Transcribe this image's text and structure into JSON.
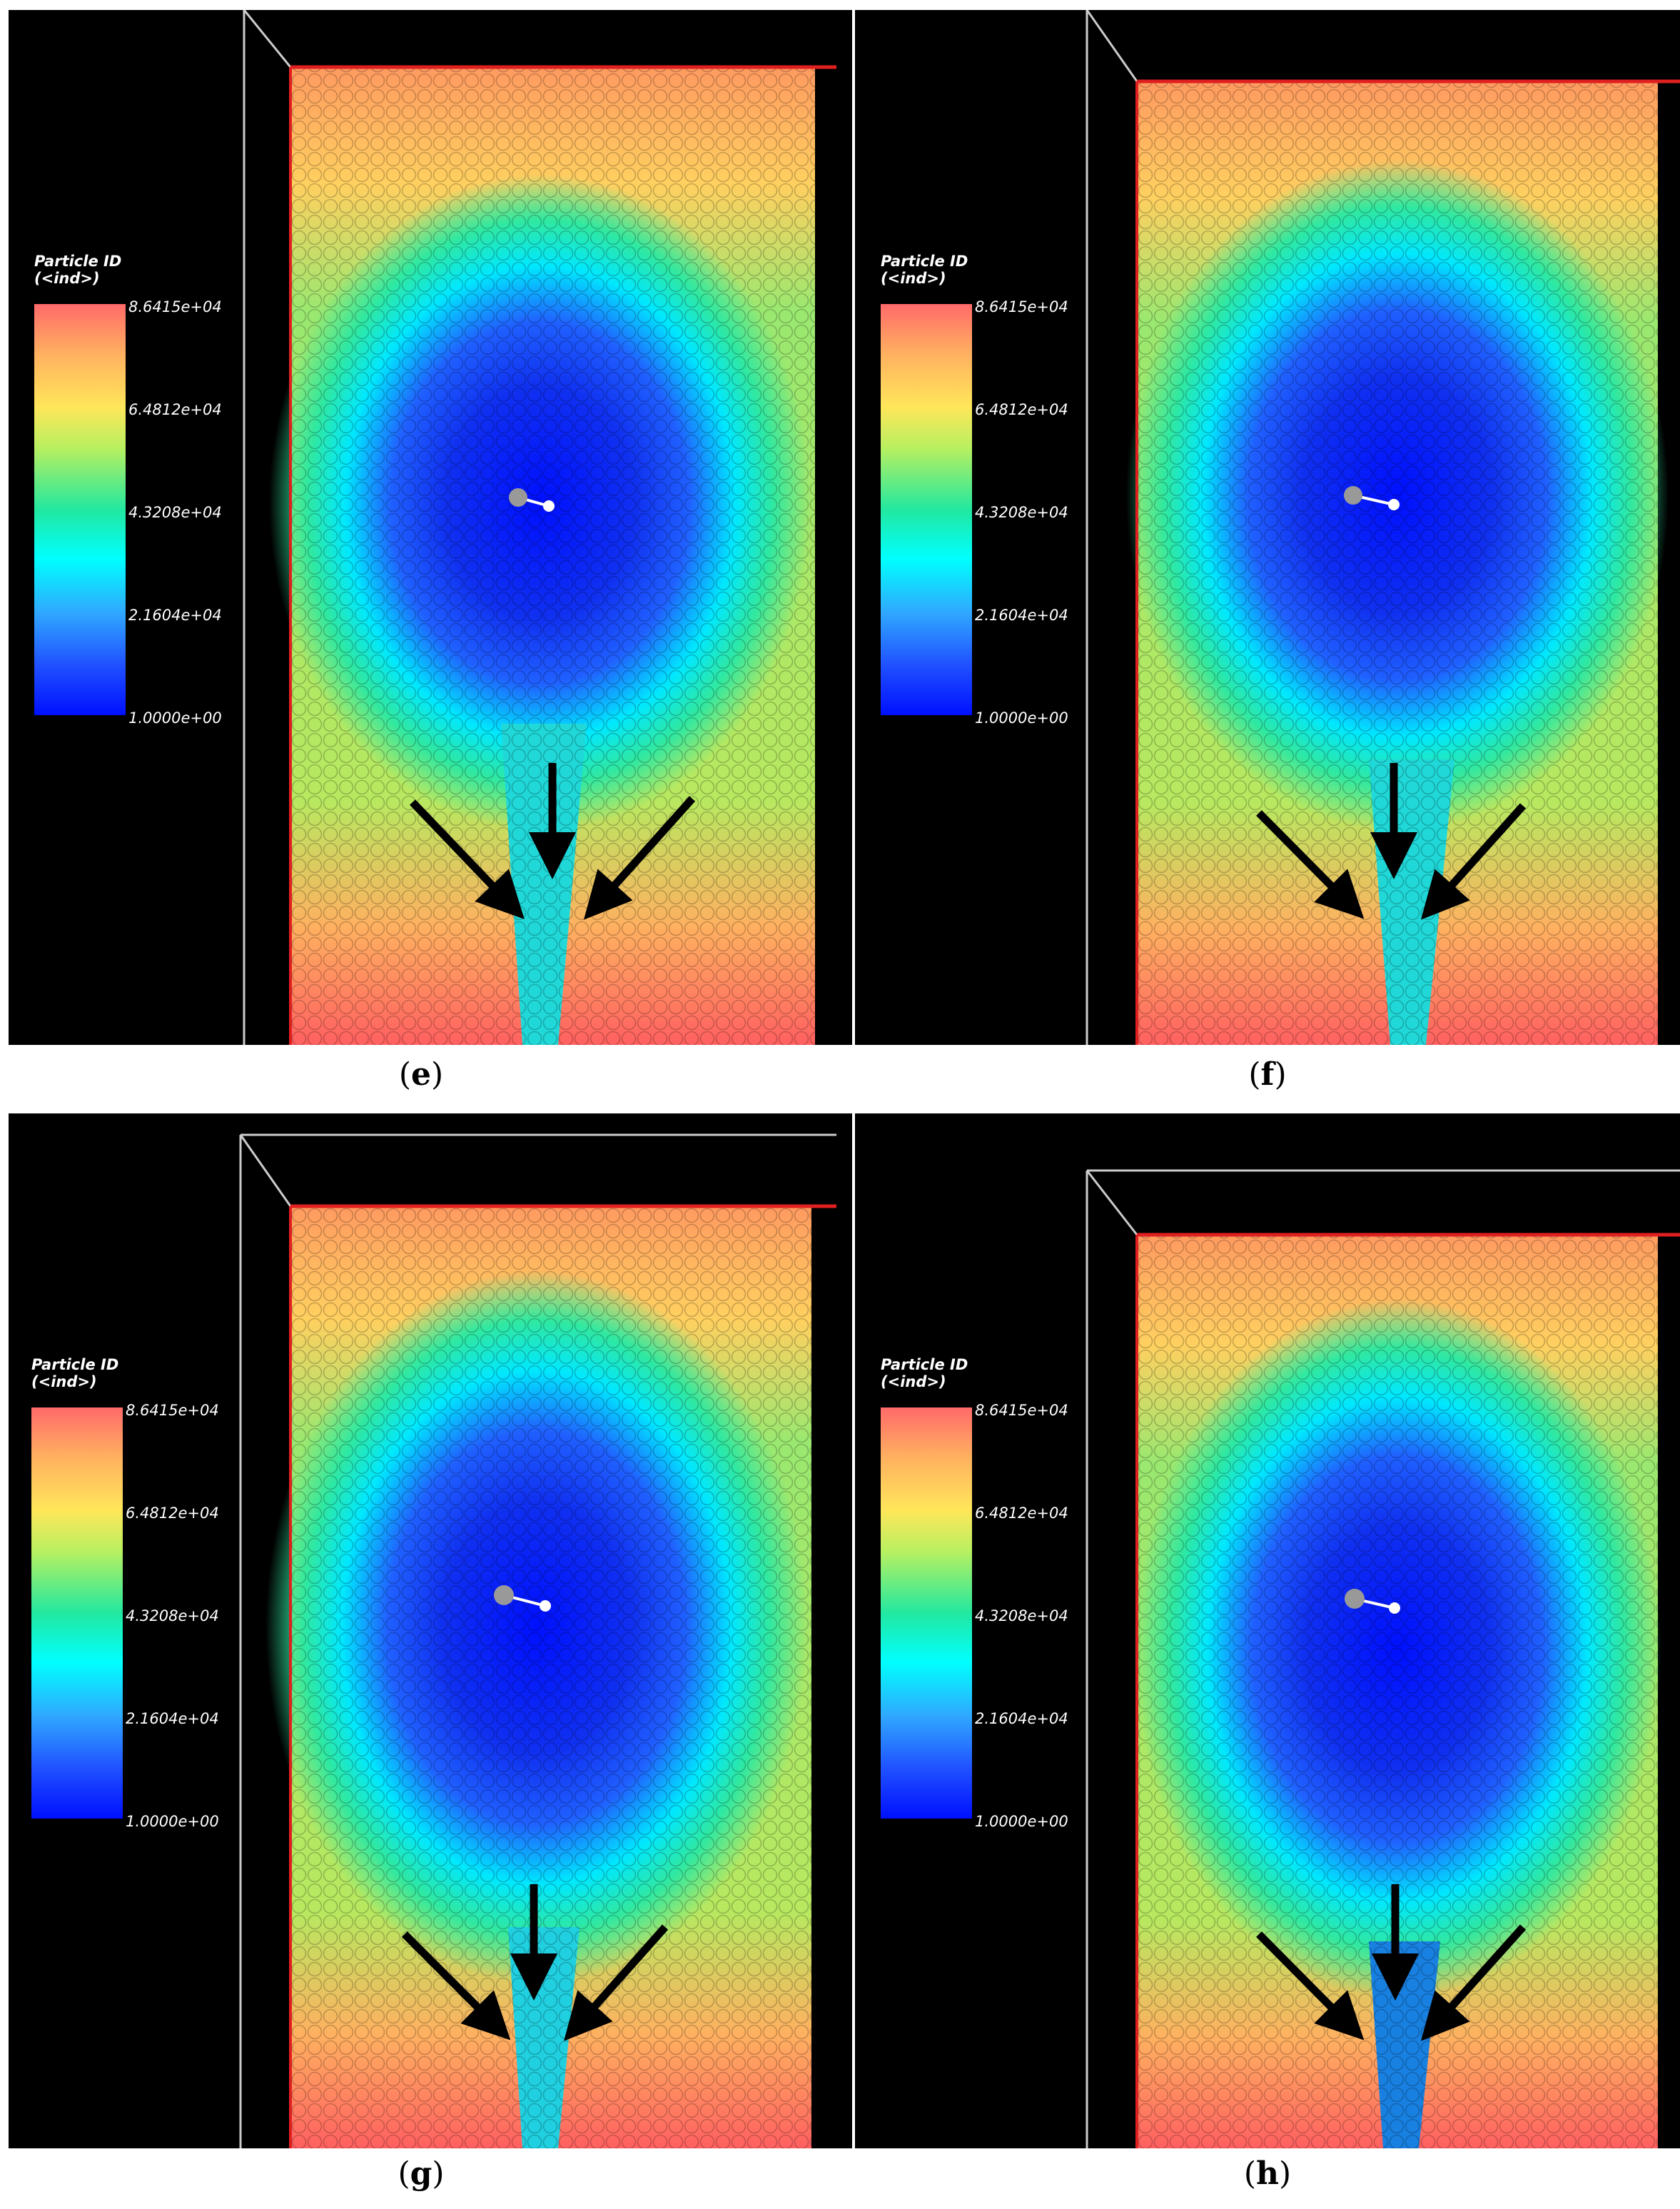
{
  "legend": {
    "title_line1": "Particle ID",
    "title_line2": "(<ind>)",
    "ticks": [
      "8.6415e+04",
      "6.4812e+04",
      "4.3208e+04",
      "2.1604e+04",
      "1.0000e+00"
    ]
  },
  "panels": [
    {
      "letter": "e"
    },
    {
      "letter": "f"
    },
    {
      "letter": "g"
    },
    {
      "letter": "h"
    }
  ],
  "colors": {
    "background": "#000000",
    "container_edge": "#e02020",
    "arrow": "#000000"
  }
}
